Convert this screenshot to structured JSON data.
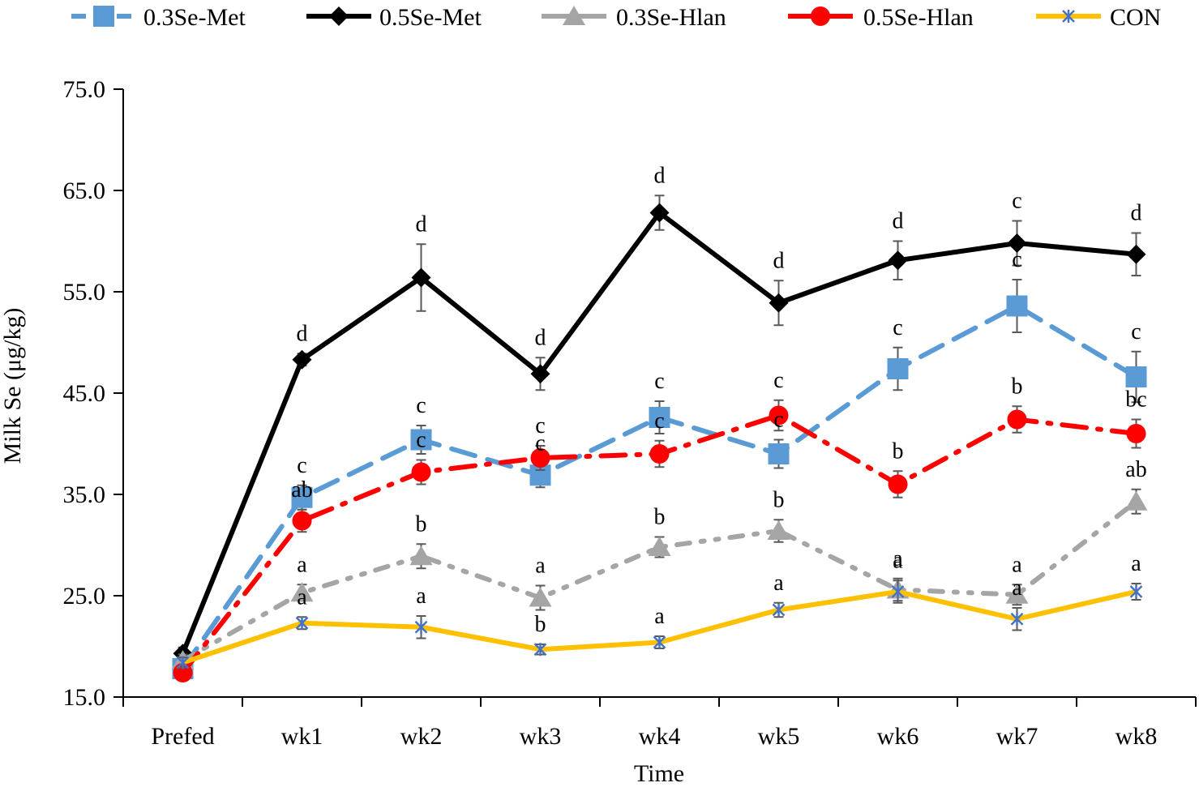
{
  "chart_data": {
    "type": "line",
    "xlabel": "Time",
    "ylabel": "Milk Se (μg/kg)",
    "ylim": [
      15,
      75
    ],
    "yticks": [
      "15.0",
      "25.0",
      "35.0",
      "45.0",
      "55.0",
      "65.0",
      "75.0"
    ],
    "categories": [
      "Prefed",
      "wk1",
      "wk2",
      "wk3",
      "wk4",
      "wk5",
      "wk6",
      "wk7",
      "wk8"
    ],
    "legend_position": "top",
    "grid": false,
    "series": [
      {
        "name": "0.3Se-Met",
        "color": "#5B9BD5",
        "line_style": "dashed",
        "marker": "square",
        "values": [
          17.8,
          34.7,
          40.4,
          36.9,
          42.6,
          39.0,
          47.4,
          53.6,
          46.6
        ],
        "errors": [
          0.8,
          1.2,
          1.4,
          1.2,
          1.6,
          1.4,
          2.1,
          2.6,
          2.5
        ],
        "labels": [
          "",
          "c",
          "c",
          "c",
          "c",
          "c",
          "c",
          "c",
          "c"
        ]
      },
      {
        "name": "0.5Se-Met",
        "color": "#000000",
        "line_style": "solid",
        "marker": "diamond",
        "values": [
          19.3,
          48.3,
          56.4,
          46.9,
          62.8,
          53.9,
          58.1,
          59.8,
          58.7
        ],
        "errors": [
          0.6,
          0.6,
          3.3,
          1.6,
          1.7,
          2.2,
          1.9,
          2.2,
          2.1
        ],
        "labels": [
          "",
          "d",
          "d",
          "d",
          "d",
          "d",
          "d",
          "c",
          "d"
        ]
      },
      {
        "name": "0.3Se-Hlan",
        "color": "#A5A5A5",
        "line_style": "dash-dot-dot",
        "marker": "triangle",
        "values": [
          18.6,
          25.3,
          28.9,
          24.8,
          29.8,
          31.4,
          25.6,
          25.1,
          34.3
        ],
        "errors": [
          0.6,
          0.8,
          1.2,
          1.2,
          1.0,
          1.1,
          1.1,
          1.0,
          1.2
        ],
        "labels": [
          "",
          "a",
          "b",
          "a",
          "b",
          "b",
          "a",
          "a",
          "ab"
        ]
      },
      {
        "name": "0.5Se-Hlan",
        "color": "#FF0000",
        "line_style": "dash-dot",
        "marker": "circle",
        "values": [
          17.4,
          32.4,
          37.2,
          38.6,
          39.0,
          42.8,
          36.0,
          42.4,
          41.0
        ],
        "errors": [
          0.6,
          1.1,
          1.2,
          1.2,
          1.3,
          1.5,
          1.3,
          1.3,
          1.4
        ],
        "labels": [
          "",
          "ab",
          "c",
          "c",
          "c",
          "c",
          "b",
          "b",
          "bc"
        ]
      },
      {
        "name": "CON",
        "color": "#FFC000",
        "line_style": "solid",
        "marker": "star",
        "values": [
          18.4,
          22.3,
          21.9,
          19.7,
          20.4,
          23.6,
          25.4,
          22.7,
          25.4
        ],
        "errors": [
          0.5,
          0.6,
          1.1,
          0.5,
          0.6,
          0.7,
          1.1,
          1.1,
          0.8
        ],
        "labels": [
          "",
          "a",
          "a",
          "b",
          "a",
          "a",
          "a",
          "a",
          "a"
        ]
      }
    ]
  }
}
